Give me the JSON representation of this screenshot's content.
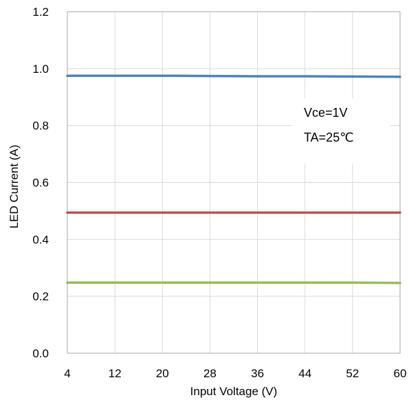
{
  "chart_data": {
    "type": "line",
    "title": "",
    "xlabel": "Input Voltage (V)",
    "ylabel": "LED Current (A)",
    "xlim": [
      4,
      60
    ],
    "ylim": [
      0,
      1.2
    ],
    "x_ticks": [
      "4",
      "12",
      "20",
      "28",
      "36",
      "44",
      "52",
      "60"
    ],
    "y_ticks": [
      "0.0",
      "0.2",
      "0.4",
      "0.6",
      "0.8",
      "1.0",
      "1.2"
    ],
    "grid": true,
    "annotations": [
      "Vce=1V",
      "TA=25℃"
    ],
    "x": [
      4,
      12,
      20,
      28,
      36,
      44,
      52,
      60
    ],
    "series": [
      {
        "color": "#4F81BD",
        "values": [
          0.975,
          0.975,
          0.975,
          0.974,
          0.973,
          0.973,
          0.972,
          0.971
        ]
      },
      {
        "color": "#C0504D",
        "values": [
          0.494,
          0.494,
          0.494,
          0.494,
          0.494,
          0.494,
          0.494,
          0.494
        ]
      },
      {
        "color": "#9BBB59",
        "values": [
          0.248,
          0.248,
          0.248,
          0.248,
          0.248,
          0.248,
          0.248,
          0.247
        ]
      }
    ]
  }
}
